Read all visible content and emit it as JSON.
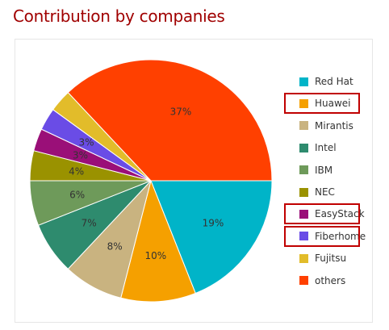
{
  "page": {
    "title": "Contribution by companies"
  },
  "chart_data": {
    "type": "pie",
    "title": "Contribution by companies",
    "unit": "%",
    "categories": [
      "Red Hat",
      "Huawei",
      "Mirantis",
      "Intel",
      "IBM",
      "NEC",
      "EasyStack",
      "Fiberhome",
      "Fujitsu",
      "others"
    ],
    "values": [
      19,
      10,
      8,
      7,
      6,
      4,
      3,
      3,
      3,
      37
    ],
    "data_labels": [
      "19%",
      "10%",
      "8%",
      "7%",
      "6%",
      "4%",
      "3%",
      "3%",
      "",
      "37%"
    ],
    "colors": [
      "#00b4c8",
      "#f5a000",
      "#c9b380",
      "#2e8b6e",
      "#6e9a5a",
      "#9a9200",
      "#9a0f78",
      "#6a4ce6",
      "#e2bc2a",
      "#ff4000"
    ],
    "start_angle": "3 o'clock, counter-clockwise order of categories drawn clockwise",
    "legend": {
      "placement": "right"
    },
    "highlighted_legend_items": [
      "Huawei",
      "EasyStack",
      "Fiberhome"
    ]
  }
}
